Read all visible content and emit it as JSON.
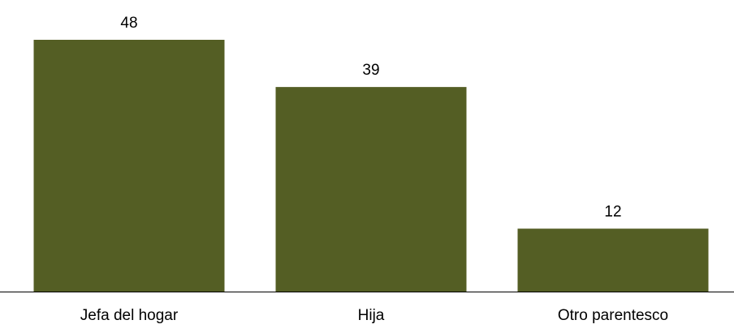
{
  "chart_data": {
    "type": "bar",
    "title": "",
    "xlabel": "",
    "ylabel": "",
    "categories": [
      "Jefa del hogar",
      "Hija",
      "Otro parentesco"
    ],
    "values": [
      48,
      39,
      12
    ],
    "data_labels": [
      "48",
      "39",
      "12"
    ],
    "ylim": [
      0,
      48
    ],
    "grid": false,
    "legend": "none",
    "bar_color": "#545e24",
    "axis_color": "#000000"
  }
}
